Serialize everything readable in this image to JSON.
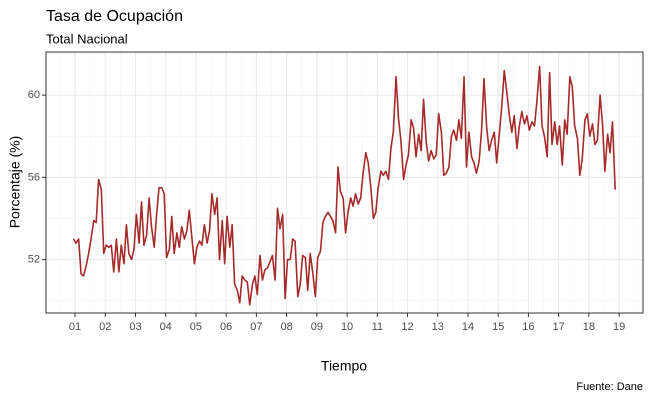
{
  "chart_data": {
    "type": "line",
    "title": "Tasa de Ocupación",
    "subtitle": "Total Nacional",
    "x_label": "Tiempo",
    "y_label": "Porcentaje  (%)",
    "caption": "Fuente: Dane",
    "xlim": [
      0.04,
      19.79
    ],
    "ylim": [
      49.4,
      62.1
    ],
    "xticks": [
      {
        "value": 1,
        "label": "01"
      },
      {
        "value": 2,
        "label": "02"
      },
      {
        "value": 3,
        "label": "03"
      },
      {
        "value": 4,
        "label": "04"
      },
      {
        "value": 5,
        "label": "05"
      },
      {
        "value": 6,
        "label": "06"
      },
      {
        "value": 7,
        "label": "07"
      },
      {
        "value": 8,
        "label": "08"
      },
      {
        "value": 9,
        "label": "09"
      },
      10,
      11,
      12,
      13,
      14,
      15,
      16,
      17,
      18,
      19
    ],
    "yticks": [
      52,
      56,
      60
    ],
    "grid": true,
    "series": [
      {
        "color": "#a52a2a",
        "x": [
          0.95,
          1.03,
          1.12,
          1.2,
          1.28,
          1.37,
          1.45,
          1.53,
          1.62,
          1.7,
          1.78,
          1.87,
          1.95,
          2.03,
          2.12,
          2.2,
          2.28,
          2.37,
          2.45,
          2.53,
          2.62,
          2.7,
          2.78,
          2.87,
          2.95,
          3.03,
          3.12,
          3.2,
          3.28,
          3.37,
          3.45,
          3.53,
          3.62,
          3.7,
          3.78,
          3.87,
          3.95,
          4.03,
          4.12,
          4.2,
          4.28,
          4.37,
          4.45,
          4.53,
          4.62,
          4.7,
          4.78,
          4.87,
          4.95,
          5.03,
          5.12,
          5.2,
          5.28,
          5.37,
          5.45,
          5.53,
          5.62,
          5.7,
          5.78,
          5.87,
          5.95,
          6.03,
          6.12,
          6.2,
          6.28,
          6.37,
          6.45,
          6.53,
          6.62,
          6.7,
          6.78,
          6.87,
          6.95,
          7.03,
          7.12,
          7.2,
          7.28,
          7.37,
          7.45,
          7.53,
          7.62,
          7.7,
          7.78,
          7.87,
          7.95,
          8.03,
          8.12,
          8.2,
          8.28,
          8.37,
          8.45,
          8.53,
          8.62,
          8.7,
          8.78,
          8.87,
          8.95,
          9.03,
          9.12,
          9.2,
          9.28,
          9.37,
          9.45,
          9.53,
          9.62,
          9.7,
          9.78,
          9.87,
          9.95,
          10.03,
          10.12,
          10.2,
          10.28,
          10.37,
          10.45,
          10.53,
          10.62,
          10.7,
          10.78,
          10.87,
          10.95,
          11.03,
          11.12,
          11.2,
          11.28,
          11.37,
          11.45,
          11.53,
          11.62,
          11.7,
          11.78,
          11.87,
          11.95,
          12.03,
          12.12,
          12.2,
          12.28,
          12.37,
          12.45,
          12.53,
          12.62,
          12.7,
          12.78,
          12.87,
          12.95,
          13.03,
          13.12,
          13.2,
          13.28,
          13.37,
          13.45,
          13.53,
          13.62,
          13.7,
          13.78,
          13.87,
          13.95,
          14.03,
          14.12,
          14.2,
          14.28,
          14.37,
          14.45,
          14.53,
          14.62,
          14.7,
          14.78,
          14.87,
          14.95,
          15.03,
          15.12,
          15.2,
          15.28,
          15.37,
          15.45,
          15.53,
          15.62,
          15.7,
          15.78,
          15.87,
          15.95,
          16.03,
          16.12,
          16.2,
          16.28,
          16.37,
          16.45,
          16.53,
          16.62,
          16.7,
          16.78,
          16.87,
          16.95,
          17.03,
          17.12,
          17.2,
          17.28,
          17.37,
          17.45,
          17.53,
          17.62,
          17.7,
          17.78,
          17.87,
          17.95,
          18.03,
          18.12,
          18.2,
          18.28,
          18.37,
          18.45,
          18.53,
          18.62,
          18.7,
          18.78,
          18.87
        ],
        "values": [
          53.0,
          52.8,
          53.0,
          51.3,
          51.2,
          51.7,
          52.3,
          53.0,
          53.9,
          53.8,
          55.9,
          55.4,
          52.3,
          52.7,
          52.6,
          52.7,
          51.4,
          53.0,
          51.4,
          52.7,
          51.8,
          53.7,
          52.3,
          52.0,
          52.5,
          54.2,
          52.8,
          54.8,
          52.7,
          53.2,
          55.0,
          53.6,
          52.6,
          54.2,
          55.5,
          55.5,
          55.2,
          52.1,
          52.5,
          54.1,
          52.3,
          53.3,
          52.6,
          53.6,
          53.0,
          53.4,
          54.4,
          53.0,
          51.8,
          52.6,
          52.9,
          52.7,
          53.7,
          52.8,
          53.4,
          55.2,
          54.2,
          55.0,
          52.0,
          53.9,
          51.8,
          54.1,
          52.6,
          53.7,
          50.8,
          50.5,
          49.9,
          51.2,
          51.0,
          50.9,
          49.8,
          50.8,
          51.2,
          50.3,
          52.2,
          51.0,
          51.5,
          51.6,
          51.9,
          52.2,
          51.0,
          54.5,
          53.5,
          54.2,
          50.1,
          52.0,
          52.0,
          53.0,
          52.9,
          50.2,
          50.8,
          52.2,
          52.1,
          50.5,
          52.3,
          51.3,
          50.2,
          52.1,
          52.4,
          53.8,
          54.1,
          54.3,
          54.1,
          53.9,
          53.3,
          56.5,
          55.3,
          55.0,
          53.3,
          54.3,
          55.0,
          54.6,
          55.2,
          54.7,
          55.0,
          56.2,
          57.2,
          56.7,
          55.6,
          54.0,
          54.3,
          55.5,
          56.3,
          56.1,
          56.3,
          55.9,
          57.4,
          58.2,
          60.9,
          58.9,
          57.8,
          55.9,
          56.6,
          57.1,
          58.8,
          58.4,
          57.0,
          58.1,
          57.3,
          59.8,
          57.7,
          56.8,
          57.3,
          56.9,
          57.1,
          59.1,
          58.2,
          56.1,
          56.2,
          56.5,
          58.0,
          58.3,
          57.8,
          58.8,
          57.9,
          60.9,
          56.5,
          58.2,
          57.0,
          56.7,
          56.2,
          56.8,
          58.3,
          60.8,
          58.4,
          57.3,
          57.8,
          58.2,
          56.7,
          58.0,
          59.5,
          61.2,
          60.2,
          59.0,
          58.2,
          59.0,
          57.4,
          58.5,
          59.2,
          58.6,
          59.0,
          58.3,
          58.7,
          58.5,
          59.7,
          61.4,
          58.5,
          58.0,
          57.0,
          61.1,
          57.6,
          58.7,
          57.6,
          58.5,
          56.6,
          58.8,
          58.1,
          60.9,
          60.4,
          58.5,
          57.9,
          56.1,
          56.9,
          58.8,
          59.1,
          58.0,
          58.6,
          57.6,
          57.8,
          60.0,
          58.6,
          56.3,
          58.1,
          57.2,
          58.7,
          55.4
        ]
      }
    ]
  }
}
